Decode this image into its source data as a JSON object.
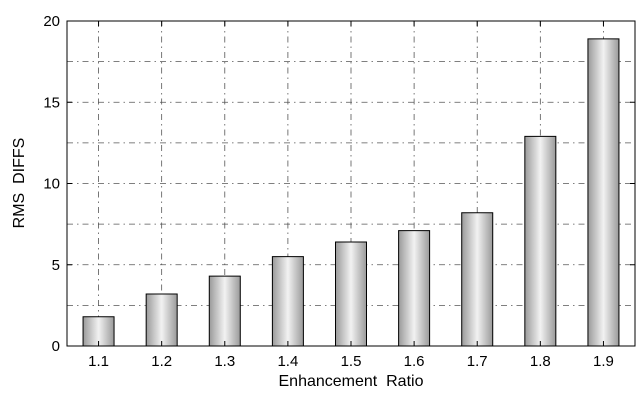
{
  "chart_data": {
    "type": "bar",
    "title": "",
    "xlabel": "Enhancement  Ratio",
    "ylabel": "RMS  DIFFS",
    "categories": [
      "1.1",
      "1.2",
      "1.3",
      "1.4",
      "1.5",
      "1.6",
      "1.7",
      "1.8",
      "1.9"
    ],
    "values": [
      1.8,
      3.2,
      4.3,
      5.5,
      6.4,
      7.1,
      8.2,
      12.9,
      18.9
    ],
    "ylim": [
      0,
      20
    ],
    "yticks": [
      0,
      5,
      10,
      15,
      20
    ],
    "ytick_labels": [
      "0",
      "5",
      "10",
      "15",
      "20"
    ],
    "grid": true,
    "legend": "none",
    "colors": {
      "bar_edge": "#000000",
      "bar_center": "#f2f2f2",
      "bar_side": "#9a9a9a",
      "grid": "#555555",
      "frame": "#000000"
    }
  }
}
